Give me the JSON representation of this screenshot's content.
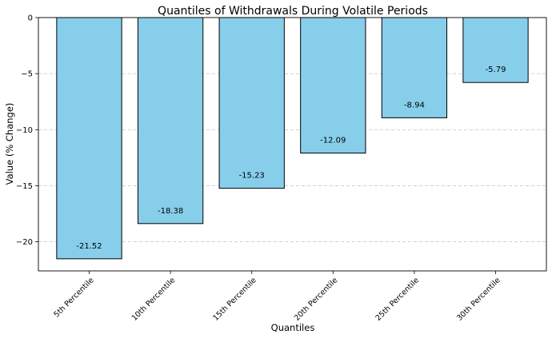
{
  "chart_data": {
    "type": "bar",
    "title": "Quantiles of Withdrawals During Volatile Periods",
    "xlabel": "Quantiles",
    "ylabel": "Value (% Change)",
    "categories": [
      "5th Percentile",
      "10th Percentile",
      "15th Percentile",
      "20th Percentile",
      "25th Percentile",
      "30th Percentile"
    ],
    "values": [
      -21.52,
      -18.38,
      -15.23,
      -12.09,
      -8.94,
      -5.79
    ],
    "value_labels": [
      "-21.52",
      "-18.38",
      "-15.23",
      "-12.09",
      "-8.94",
      "-5.79"
    ],
    "ylim": [
      -22.6,
      0
    ],
    "yticks": [
      0,
      -5,
      -10,
      -15,
      -20
    ],
    "ytick_labels": [
      "0",
      "−5",
      "−10",
      "−15",
      "−20"
    ],
    "grid": "horizontal-dashed",
    "bar_color": "#87ceeb",
    "bar_edge_color": "#000000",
    "grid_color": "#bfbfbf"
  }
}
